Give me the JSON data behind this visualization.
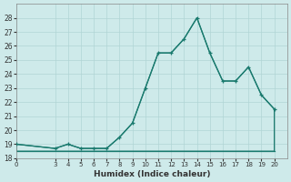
{
  "xlabel": "Humidex (Indice chaleur)",
  "x_main": [
    0,
    3,
    4,
    5,
    6,
    7,
    8,
    9,
    10,
    11,
    12,
    13,
    14,
    15,
    16,
    17,
    18,
    19,
    20
  ],
  "y_main": [
    19,
    18.7,
    19,
    18.7,
    18.7,
    18.7,
    19.5,
    20.5,
    23.0,
    25.5,
    25.5,
    26.5,
    28,
    25.5,
    23.5,
    23.5,
    24.5,
    22.5,
    21.5
  ],
  "x_base": [
    0,
    3,
    4,
    5,
    6,
    7,
    8,
    9,
    10,
    11,
    12,
    13,
    14,
    15,
    16,
    17,
    18,
    19,
    20
  ],
  "y_base": [
    18.5,
    18.5,
    18.5,
    18.5,
    18.5,
    18.5,
    18.5,
    18.5,
    18.5,
    18.5,
    18.5,
    18.5,
    18.5,
    18.5,
    18.5,
    18.5,
    18.5,
    18.5,
    18.5
  ],
  "line_color": "#1a7a6e",
  "bg_color": "#ceeaea",
  "grid_color": "#b0d5d5",
  "spine_color": "#888888",
  "tick_color": "#333333",
  "xlim": [
    0,
    21
  ],
  "ylim": [
    18,
    29
  ],
  "yticks": [
    18,
    19,
    20,
    21,
    22,
    23,
    24,
    25,
    26,
    27,
    28
  ],
  "xticks": [
    0,
    3,
    4,
    5,
    6,
    7,
    8,
    9,
    10,
    11,
    12,
    13,
    14,
    15,
    16,
    17,
    18,
    19,
    20
  ],
  "xlabel_fontsize": 6.5,
  "tick_labelsize": 5.5,
  "linewidth": 0.9,
  "markersize": 3.0
}
